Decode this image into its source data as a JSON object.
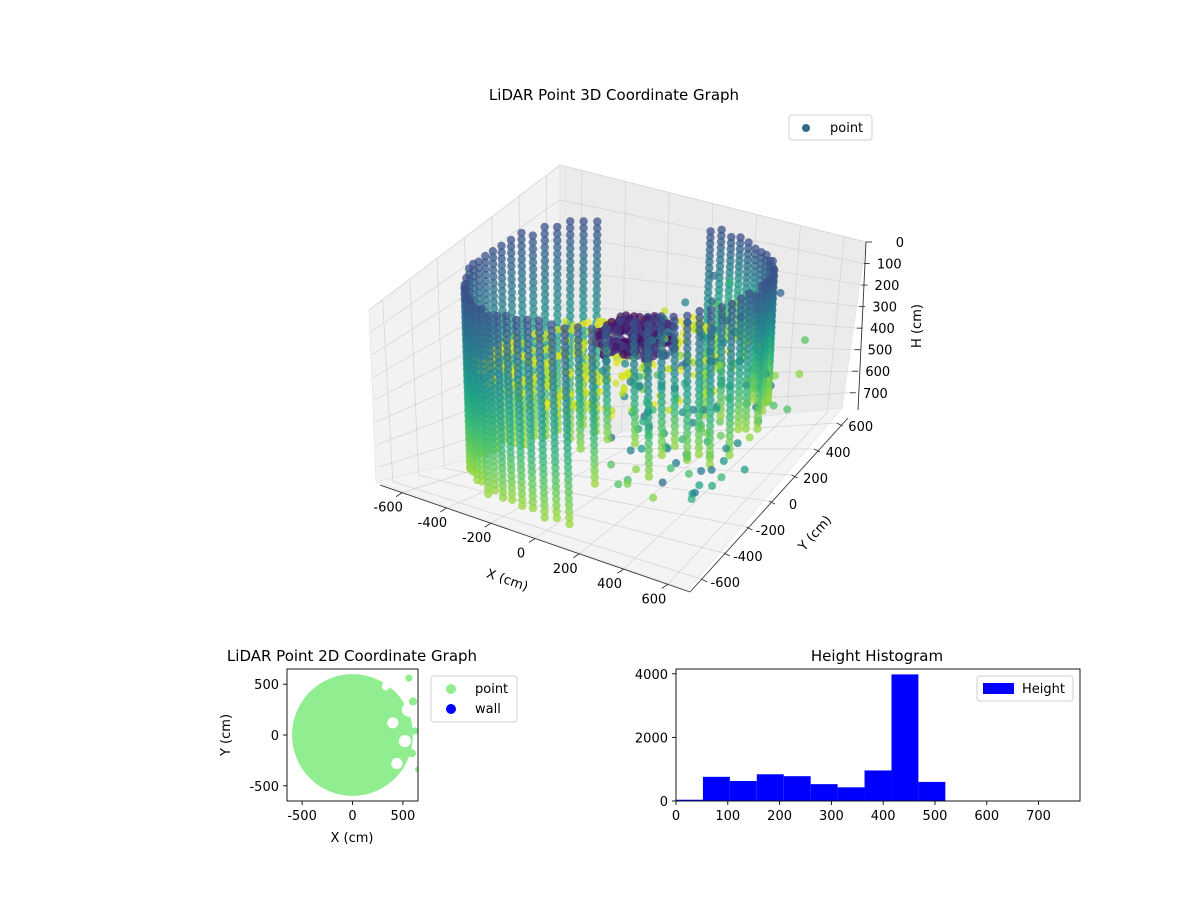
{
  "chart_data": [
    {
      "type": "scatter",
      "projection": "3d",
      "title": "LiDAR Point 3D Coordinate Graph",
      "xlabel": "X (cm)",
      "ylabel": "Y (cm)",
      "zlabel": "H (cm)",
      "xlim": [
        -700,
        700
      ],
      "ylim": [
        -700,
        700
      ],
      "zlim": [
        0,
        780
      ],
      "z_inverted": true,
      "xticks": [
        -600,
        -400,
        -200,
        0,
        200,
        400,
        600
      ],
      "yticks": [
        -600,
        -400,
        -200,
        0,
        200,
        400,
        600
      ],
      "zticks": [
        0,
        100,
        200,
        300,
        400,
        500,
        600,
        700
      ],
      "colormap": "viridis",
      "legend": {
        "position": "top-right",
        "entries": [
          {
            "label": "point",
            "color": "#31688e"
          }
        ]
      },
      "grid": true,
      "structure": {
        "wall_ring": {
          "radius": 600,
          "arc_x_min": -600,
          "arc_x_max": 620,
          "height_range": [
            30,
            760
          ]
        },
        "floor_disc": {
          "height": 360
        },
        "dense_cluster": {
          "x": 50,
          "y": -50,
          "height_range": [
            180,
            300
          ]
        }
      }
    },
    {
      "type": "scatter",
      "title": "LiDAR Point 2D Coordinate Graph",
      "xlabel": "X (cm)",
      "ylabel": "Y (cm)",
      "xlim": [
        -650,
        650
      ],
      "ylim": [
        -650,
        650
      ],
      "xticks": [
        -500,
        0,
        500
      ],
      "yticks": [
        -500,
        0,
        500
      ],
      "legend": {
        "position": "outside-right",
        "entries": [
          {
            "label": "point",
            "color": "#90ee90"
          },
          {
            "label": "wall",
            "color": "#0000ff"
          }
        ]
      },
      "series": [
        {
          "name": "point",
          "color": "#90ee90",
          "shape": "disc",
          "center": [
            0,
            0
          ],
          "radius": 600
        }
      ]
    },
    {
      "type": "bar",
      "title": "Height Histogram",
      "xlim": [
        0,
        780
      ],
      "ylim": [
        0,
        4150
      ],
      "xticks": [
        0,
        100,
        200,
        300,
        400,
        500,
        600,
        700
      ],
      "yticks": [
        0,
        2000,
        4000
      ],
      "legend": {
        "position": "top-right",
        "entries": [
          {
            "label": "Height",
            "color": "#0000ff"
          }
        ]
      },
      "bin_width": 52,
      "series": [
        {
          "name": "Height",
          "color": "#0000ff",
          "bins": [
            {
              "x0": 0,
              "x1": 52,
              "value": 40
            },
            {
              "x0": 52,
              "x1": 104,
              "value": 760
            },
            {
              "x0": 104,
              "x1": 156,
              "value": 630
            },
            {
              "x0": 156,
              "x1": 208,
              "value": 840
            },
            {
              "x0": 208,
              "x1": 260,
              "value": 780
            },
            {
              "x0": 260,
              "x1": 312,
              "value": 530
            },
            {
              "x0": 312,
              "x1": 364,
              "value": 430
            },
            {
              "x0": 364,
              "x1": 416,
              "value": 960
            },
            {
              "x0": 416,
              "x1": 468,
              "value": 3980
            },
            {
              "x0": 468,
              "x1": 520,
              "value": 600
            }
          ]
        }
      ]
    }
  ]
}
